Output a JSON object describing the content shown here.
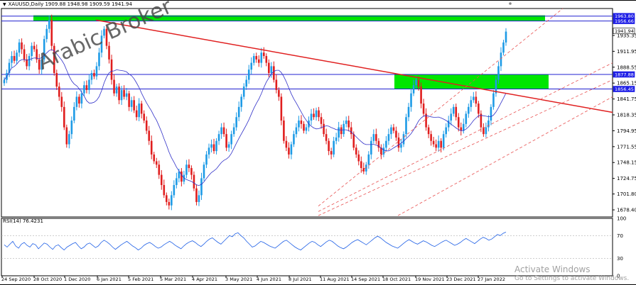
{
  "header": {
    "symbol_line": "XAUUSD,Daily  1909.88 1948.98 1909.59 1941.94"
  },
  "watermark": "Arabic Broker",
  "rsi": {
    "label": "RSI(14) 76.4231",
    "levels": [
      "100",
      "70",
      "30",
      "0"
    ],
    "values": [
      54,
      50,
      55,
      60,
      52,
      48,
      55,
      58,
      53,
      50,
      56,
      54,
      47,
      52,
      57,
      55,
      50,
      46,
      52,
      54,
      49,
      45,
      50,
      53,
      56,
      58,
      52,
      47,
      50,
      55,
      57,
      53,
      49,
      52,
      58,
      62,
      59,
      55,
      50,
      46,
      50,
      54,
      57,
      60,
      56,
      52,
      49,
      45,
      48,
      53,
      56,
      58,
      55,
      51,
      48,
      50,
      54,
      57,
      60,
      57,
      53,
      50,
      47,
      52,
      56,
      59,
      61,
      58,
      54,
      51,
      55,
      60,
      64,
      66,
      62,
      58,
      55,
      60,
      65,
      70,
      68,
      73,
      75,
      70,
      66,
      60,
      55,
      50,
      52,
      56,
      60,
      58,
      55,
      52,
      50,
      48,
      52,
      56,
      60,
      62,
      58,
      54,
      50,
      47,
      45,
      49,
      53,
      57,
      60,
      58,
      54,
      51,
      55,
      59,
      62,
      60,
      56,
      52,
      49,
      47,
      50,
      54,
      58,
      61,
      63,
      60,
      57,
      54,
      58,
      62,
      66,
      69,
      66,
      62,
      58,
      55,
      52,
      50,
      48,
      52,
      56,
      60,
      63,
      60,
      57,
      55,
      58,
      61,
      59,
      56,
      53,
      51,
      54,
      57,
      60,
      62,
      59,
      56,
      53,
      55,
      58,
      62,
      65,
      62,
      59,
      56,
      60,
      64,
      67,
      65,
      62,
      64,
      68,
      72,
      70,
      74,
      76
    ]
  },
  "price_axis": {
    "ticks": [
      "1935.35",
      "1911.95",
      "1888.55",
      "1865.15",
      "1841.75",
      "1818.35",
      "1794.95",
      "1771.55",
      "1748.15",
      "1724.75",
      "1701.80",
      "1678.40"
    ],
    "labels": [
      {
        "text": "1963.80",
        "color": "#1e1ee6"
      },
      {
        "text": "1956.66",
        "color": "#1e1ee6"
      },
      {
        "text": "1941.94",
        "color": "#000000"
      },
      {
        "text": "1877.88",
        "color": "#1e1ee6"
      },
      {
        "text": "1856.45",
        "color": "#1e1ee6"
      }
    ]
  },
  "time_axis": {
    "labels": [
      "24 Sep 2020",
      "28 Oct 2020",
      "1 Dec 2020",
      "6 Jan 2021",
      "5 Feb 2021",
      "5 Mar 2021",
      "4 Apr 2021",
      "3 May 2021",
      "4 Jun 2021",
      "8 Jul 2021",
      "11 Aug 2021",
      "14 Sep 2021",
      "18 Oct 2021",
      "19 Nov 2021",
      "23 Dec 2021",
      "27 Jan 2022"
    ]
  },
  "price_data": {
    "closes": [
      1870,
      1880,
      1895,
      1905,
      1898,
      1910,
      1925,
      1915,
      1900,
      1890,
      1905,
      1920,
      1915,
      1900,
      1885,
      1900,
      1930,
      1945,
      1958,
      1920,
      1880,
      1860,
      1845,
      1830,
      1800,
      1775,
      1790,
      1810,
      1830,
      1845,
      1835,
      1850,
      1862,
      1855,
      1870,
      1880,
      1875,
      1890,
      1910,
      1935,
      1945,
      1920,
      1900,
      1870,
      1850,
      1860,
      1840,
      1855,
      1845,
      1850,
      1830,
      1840,
      1825,
      1815,
      1835,
      1820,
      1810,
      1795,
      1780,
      1760,
      1750,
      1745,
      1730,
      1715,
      1700,
      1690,
      1685,
      1700,
      1715,
      1725,
      1735,
      1720,
      1730,
      1745,
      1740,
      1730,
      1710,
      1690,
      1700,
      1725,
      1745,
      1760,
      1770,
      1775,
      1765,
      1780,
      1790,
      1800,
      1790,
      1770,
      1775,
      1790,
      1800,
      1815,
      1830,
      1845,
      1860,
      1870,
      1885,
      1895,
      1905,
      1900,
      1895,
      1910,
      1905,
      1895,
      1880,
      1890,
      1870,
      1855,
      1845,
      1810,
      1780,
      1770,
      1760,
      1775,
      1790,
      1800,
      1810,
      1805,
      1795,
      1800,
      1810,
      1820,
      1815,
      1825,
      1815,
      1805,
      1790,
      1780,
      1765,
      1760,
      1780,
      1785,
      1800,
      1790,
      1805,
      1810,
      1800,
      1790,
      1770,
      1760,
      1750,
      1740,
      1735,
      1745,
      1760,
      1780,
      1790,
      1780,
      1770,
      1760,
      1770,
      1780,
      1790,
      1800,
      1795,
      1785,
      1770,
      1775,
      1790,
      1815,
      1830,
      1850,
      1862,
      1870,
      1860,
      1835,
      1820,
      1800,
      1790,
      1780,
      1775,
      1770,
      1780,
      1770,
      1790,
      1800,
      1810,
      1820,
      1830,
      1815,
      1800,
      1795,
      1805,
      1820,
      1830,
      1840,
      1845,
      1835,
      1820,
      1800,
      1790,
      1800,
      1810,
      1830,
      1850,
      1870,
      1890,
      1910,
      1925,
      1941
    ],
    "ma_label": "",
    "ema": []
  },
  "zones": {
    "top_zone_color": "#00e600",
    "mid_zone_color": "#00e600",
    "trendline_color": "#e02020",
    "channel_color": "#e85050",
    "hline_color": "#2020d0",
    "ma_color": "#3030c8",
    "bull_color": "#1e9be6",
    "bear_color": "#e01e1e"
  },
  "os_notice": {
    "title": "Activate Windows",
    "subtitle": "Go to Settings to activate Windows."
  }
}
